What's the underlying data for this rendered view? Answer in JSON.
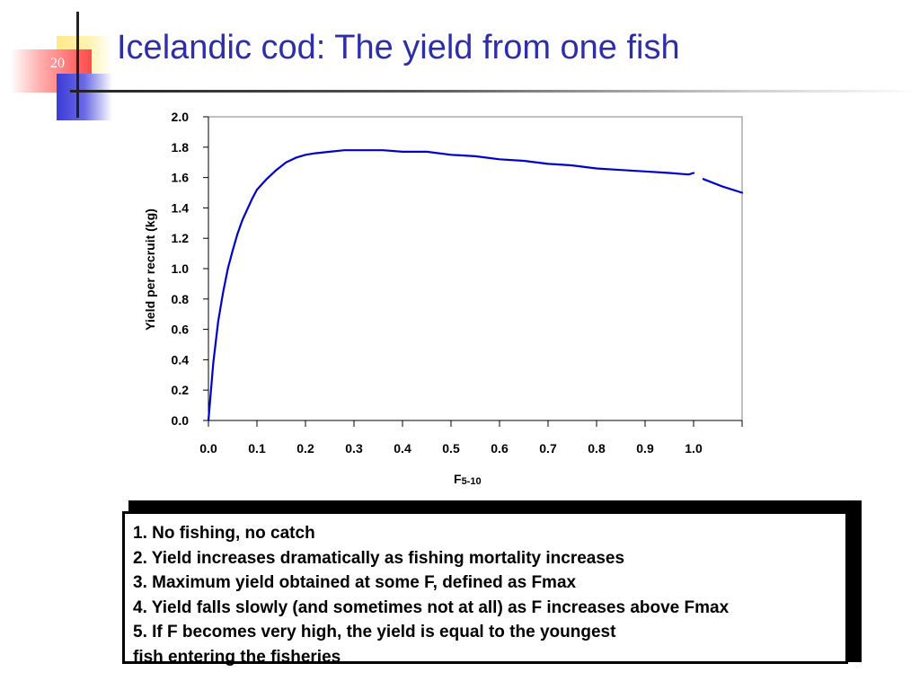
{
  "slide": {
    "number": "20",
    "title": "Icelandic cod: The yield from one fish"
  },
  "chart_data": {
    "type": "line",
    "xlabel": "F",
    "xlabel_subscript": "5-10",
    "ylabel": "Yield per recruit (kg)",
    "xlim": [
      0.0,
      1.1
    ],
    "ylim": [
      0.0,
      2.0
    ],
    "xticks": [
      "0.0",
      "0.1",
      "0.2",
      "0.3",
      "0.4",
      "0.5",
      "0.6",
      "0.7",
      "0.8",
      "0.9",
      "1.0"
    ],
    "yticks": [
      "0.0",
      "0.2",
      "0.4",
      "0.6",
      "0.8",
      "1.0",
      "1.2",
      "1.4",
      "1.6",
      "1.8",
      "2.0"
    ],
    "line_color": "#0000cc",
    "series": [
      {
        "values": [
          [
            0.0,
            0.0
          ],
          [
            0.01,
            0.38
          ],
          [
            0.02,
            0.65
          ],
          [
            0.03,
            0.84
          ],
          [
            0.04,
            1.0
          ],
          [
            0.05,
            1.12
          ],
          [
            0.06,
            1.23
          ],
          [
            0.07,
            1.32
          ],
          [
            0.08,
            1.39
          ],
          [
            0.09,
            1.46
          ],
          [
            0.1,
            1.52
          ],
          [
            0.12,
            1.59
          ],
          [
            0.14,
            1.65
          ],
          [
            0.16,
            1.7
          ],
          [
            0.18,
            1.73
          ],
          [
            0.2,
            1.75
          ],
          [
            0.22,
            1.76
          ],
          [
            0.25,
            1.77
          ],
          [
            0.28,
            1.78
          ],
          [
            0.32,
            1.78
          ],
          [
            0.36,
            1.78
          ],
          [
            0.4,
            1.77
          ],
          [
            0.45,
            1.77
          ],
          [
            0.5,
            1.75
          ],
          [
            0.55,
            1.74
          ],
          [
            0.6,
            1.72
          ],
          [
            0.65,
            1.71
          ],
          [
            0.7,
            1.69
          ],
          [
            0.75,
            1.68
          ],
          [
            0.8,
            1.66
          ],
          [
            0.85,
            1.65
          ],
          [
            0.9,
            1.64
          ],
          [
            0.95,
            1.63
          ],
          [
            0.99,
            1.62
          ],
          [
            1.0,
            1.63
          ]
        ]
      },
      {
        "values": [
          [
            1.02,
            1.59
          ],
          [
            1.06,
            1.54
          ],
          [
            1.1,
            1.5
          ]
        ]
      }
    ]
  },
  "notes": [
    "1. No fishing, no catch",
    "2. Yield increases dramatically as fishing mortality increases",
    "3. Maximum yield obtained at some F, defined as Fmax",
    "4. Yield falls slowly (and sometimes not at all) as F increases above Fmax",
    "5. If F becomes very high, the yield is equal to the youngest",
    "fish entering the fisheries"
  ]
}
